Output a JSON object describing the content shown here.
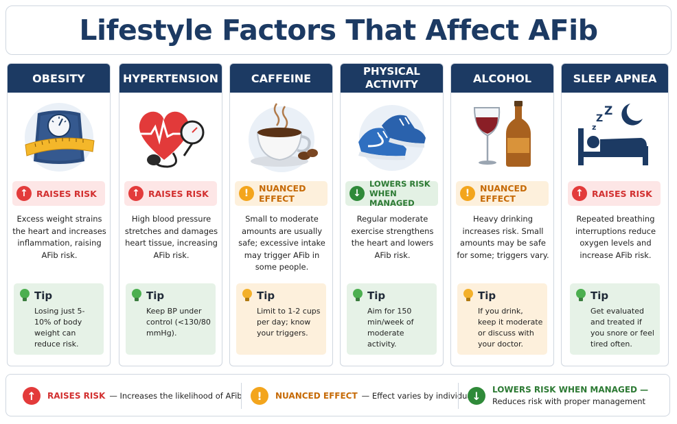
{
  "title": "Lifestyle Factors That Affect AFib",
  "cards": [
    {
      "header": "OBESITY",
      "badge": "RAISES RISK",
      "badge_type": "raise",
      "description": "Excess weight strains the heart and increases inflammation, raising AFib risk.",
      "tip_title": "Tip",
      "tip_text": "Losing just 5-10% of body weight can reduce risk.",
      "tip_style": "green",
      "icon": "scale-tape-icon"
    },
    {
      "header": "HYPERTENSION",
      "badge": "RAISES RISK",
      "badge_type": "raise",
      "description": "High blood pressure stretches and damages heart tissue, increasing AFib risk.",
      "tip_title": "Tip",
      "tip_text": "Keep BP under control (<130/80 mmHg).",
      "tip_style": "green",
      "icon": "heart-bp-gauge-icon"
    },
    {
      "header": "CAFFEINE",
      "badge": "NUANCED EFFECT",
      "badge_type": "nuance",
      "description": "Small to moderate amounts are usually safe; excessive intake may trigger AFib in some people.",
      "tip_title": "Tip",
      "tip_text": "Limit to 1-2 cups per day; know your triggers.",
      "tip_style": "yellow",
      "icon": "coffee-cup-icon"
    },
    {
      "header": "PHYSICAL ACTIVITY",
      "badge": "LOWERS RISK WHEN MANAGED",
      "badge_type": "lower",
      "description": "Regular moderate exercise strengthens the heart and lowers AFib risk.",
      "tip_title": "Tip",
      "tip_text": "Aim for 150 min/week of moderate activity.",
      "tip_style": "green",
      "icon": "sneakers-icon"
    },
    {
      "header": "ALCOHOL",
      "badge": "NUANCED EFFECT",
      "badge_type": "nuance",
      "description": "Heavy drinking increases risk. Small amounts may be safe for some; triggers vary.",
      "tip_title": "Tip",
      "tip_text": "If you drink, keep it moderate or discuss with your doctor.",
      "tip_style": "yellow",
      "icon": "wine-beer-icon"
    },
    {
      "header": "SLEEP APNEA",
      "badge": "RAISES RISK",
      "badge_type": "raise",
      "description": "Repeated breathing interruptions reduce oxygen levels and increase AFib risk.",
      "tip_title": "Tip",
      "tip_text": "Get evaluated and treated if you snore or feel tired often.",
      "tip_style": "green",
      "icon": "sleeping-bed-icon"
    }
  ],
  "legend": [
    {
      "label": "RAISES RISK",
      "description": "— Increases the likelihood of AFib",
      "color": "#e33b3b"
    },
    {
      "label": "NUANCED EFFECT",
      "description": "— Effect varies by individual",
      "color": "#f3a51d"
    },
    {
      "label": "LOWERS RISK WHEN MANAGED —",
      "description": "Reduces risk with proper management",
      "color": "#2f8a39"
    }
  ]
}
